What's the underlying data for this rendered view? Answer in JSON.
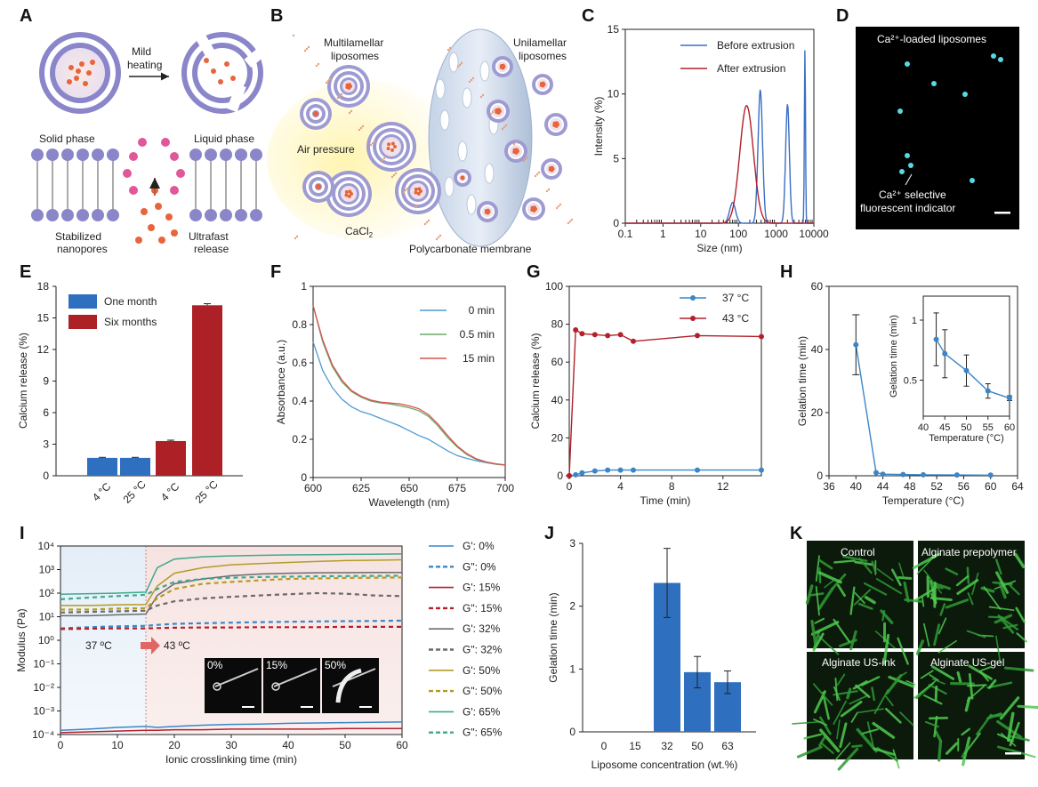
{
  "panels": {
    "A": {
      "label": "A",
      "mild": "Mild",
      "heating": "heating",
      "solid": "Solid phase",
      "liquid": "Liquid phase",
      "stab1": "Stabilized",
      "stab2": "nanopores",
      "ultra1": "Ultrafast",
      "ultra2": "release"
    },
    "B": {
      "label": "B",
      "multi1": "Multilamellar",
      "multi2": "liposomes",
      "uni1": "Unilamellar",
      "uni2": "liposomes",
      "air": "Air pressure",
      "cacl": "CaCl",
      "cacl_sub": "2",
      "membrane": "Polycarbonate membrane"
    },
    "C": {
      "label": "C"
    },
    "D": {
      "label": "D",
      "title": "Ca²⁺-loaded liposomes",
      "ind1": "Ca²⁺ selective",
      "ind2": "fluorescent indicator"
    },
    "E": {
      "label": "E"
    },
    "F": {
      "label": "F"
    },
    "G": {
      "label": "G"
    },
    "H": {
      "label": "H"
    },
    "I": {
      "label": "I",
      "temp_from": "37 ºC",
      "temp_to": "43 ºC",
      "insets": [
        "0%",
        "15%",
        "50%"
      ]
    },
    "J": {
      "label": "J"
    },
    "K": {
      "label": "K",
      "tiles": [
        "Control",
        "Alginate prepolymer",
        "Alginate US-ink",
        "Alginate US-gel"
      ]
    }
  },
  "colors": {
    "blue": "#3a6fc4",
    "red": "#b3202a",
    "green": "#6aa86a",
    "gray": "#6b6b6b",
    "gold": "#b59a27",
    "teal": "#3fa88c",
    "barblue": "#2f6fbf",
    "barred": "#ad2025"
  },
  "chart_data": [
    {
      "id": "C",
      "type": "line",
      "xlabel": "Size (nm)",
      "ylabel": "Intensity (%)",
      "xscale": "log",
      "xlim": [
        0.1,
        10000
      ],
      "ylim": [
        0,
        15
      ],
      "xticks": [
        "0.1",
        "1",
        "10",
        "100",
        "1000",
        "10000"
      ],
      "yticks": [
        "0",
        "5",
        "10",
        "15"
      ],
      "series": [
        {
          "name": "Before extrusion",
          "color": "#3a6fc4",
          "peaks": [
            [
              70,
              1.6,
              0.08
            ],
            [
              380,
              10.3,
              0.06
            ],
            [
              2000,
              9.2,
              0.05
            ],
            [
              5800,
              13.4,
              0.015
            ]
          ]
        },
        {
          "name": "After extrusion",
          "color": "#b3202a",
          "peaks": [
            [
              165,
              9.1,
              0.18
            ]
          ]
        }
      ]
    },
    {
      "id": "E",
      "type": "bar",
      "ylabel": "Calcium release (%)",
      "ylim": [
        0,
        18
      ],
      "yticks": [
        "0",
        "3",
        "6",
        "9",
        "12",
        "15",
        "18"
      ],
      "categories": [
        "4 °C",
        "25 °C",
        "4 °C",
        "25 °C"
      ],
      "values": [
        1.7,
        1.7,
        3.3,
        16.2
      ],
      "errors": [
        0.05,
        0.05,
        0.08,
        0.15
      ],
      "series_of_bar": [
        "One month",
        "One month",
        "Six months",
        "Six months"
      ],
      "legend": [
        "One month",
        "Six months"
      ]
    },
    {
      "id": "F",
      "type": "line",
      "xlabel": "Wavelength (nm)",
      "ylabel": "Absorbance (a.u.)",
      "xlim": [
        600,
        700
      ],
      "ylim": [
        0,
        1
      ],
      "xticks": [
        "600",
        "625",
        "650",
        "675",
        "700"
      ],
      "yticks": [
        "0",
        "0.2",
        "0.4",
        "0.6",
        "0.8",
        "1"
      ],
      "x": [
        600,
        605,
        610,
        615,
        620,
        625,
        630,
        635,
        640,
        645,
        650,
        655,
        660,
        665,
        670,
        675,
        680,
        685,
        690,
        695,
        700
      ],
      "series": [
        {
          "name": "0 min",
          "color": "#4f9bd4",
          "values": [
            0.71,
            0.56,
            0.47,
            0.41,
            0.37,
            0.345,
            0.33,
            0.31,
            0.29,
            0.27,
            0.245,
            0.22,
            0.2,
            0.17,
            0.14,
            0.115,
            0.1,
            0.088,
            0.078,
            0.07,
            0.065
          ]
        },
        {
          "name": "0.5 min",
          "color": "#6aa86a",
          "values": [
            0.9,
            0.71,
            0.58,
            0.5,
            0.45,
            0.42,
            0.4,
            0.39,
            0.385,
            0.375,
            0.365,
            0.35,
            0.32,
            0.27,
            0.21,
            0.16,
            0.12,
            0.095,
            0.08,
            0.07,
            0.065
          ]
        },
        {
          "name": "15 min",
          "color": "#d9534f",
          "values": [
            0.9,
            0.72,
            0.59,
            0.51,
            0.455,
            0.425,
            0.405,
            0.395,
            0.39,
            0.385,
            0.375,
            0.36,
            0.33,
            0.28,
            0.22,
            0.165,
            0.125,
            0.098,
            0.082,
            0.072,
            0.066
          ]
        }
      ]
    },
    {
      "id": "G",
      "type": "line",
      "xlabel": "Time (min)",
      "ylabel": "Calcium release (%)",
      "xlim": [
        0,
        15
      ],
      "ylim": [
        0,
        100
      ],
      "xticks": [
        "0",
        "4",
        "8",
        "12"
      ],
      "yticks": [
        "0",
        "20",
        "40",
        "60",
        "80",
        "100"
      ],
      "series": [
        {
          "name": "37 °C",
          "color": "#3a86c8",
          "x": [
            0,
            0.5,
            1,
            2,
            3,
            4,
            5,
            10,
            15
          ],
          "values": [
            0,
            0.5,
            1.5,
            2.5,
            3,
            3,
            3,
            3,
            3
          ]
        },
        {
          "name": "43 °C",
          "color": "#b3202a",
          "x": [
            0,
            0.5,
            1,
            2,
            3,
            4,
            5,
            10,
            15
          ],
          "values": [
            0,
            77,
            75,
            74.5,
            74,
            74.5,
            71,
            74,
            73.5
          ]
        }
      ]
    },
    {
      "id": "H",
      "type": "line",
      "xlabel": "Temperature (°C)",
      "ylabel": "Gelation time (min)",
      "xlim": [
        36,
        64
      ],
      "ylim": [
        0,
        60
      ],
      "xticks": [
        "36",
        "40",
        "44",
        "48",
        "52",
        "56",
        "60",
        "64"
      ],
      "yticks": [
        "0",
        "20",
        "40",
        "60"
      ],
      "x": [
        40,
        43,
        44,
        47,
        50,
        55,
        60
      ],
      "values": [
        41.5,
        1,
        0.5,
        0.4,
        0.3,
        0.25,
        0.2
      ],
      "errors": [
        9.5,
        0,
        0,
        0,
        0,
        0,
        0
      ],
      "inset": {
        "xlabel": "Temperature (°C)",
        "ylabel": "Gelation time (min)",
        "xlim": [
          40,
          60
        ],
        "ylim": [
          0.2,
          1.2
        ],
        "xticks": [
          "40",
          "45",
          "50",
          "55",
          "60"
        ],
        "yticks": [
          "0.5",
          "1"
        ],
        "x": [
          43,
          45,
          50,
          55,
          60
        ],
        "values": [
          0.84,
          0.72,
          0.58,
          0.41,
          0.35
        ],
        "errors": [
          0.22,
          0.2,
          0.13,
          0.06,
          0.02
        ]
      }
    },
    {
      "id": "I",
      "type": "line",
      "xlabel": "Ionic crosslinking time (min)",
      "ylabel": "Modulus (Pa)",
      "xlim": [
        0,
        60
      ],
      "yscale": "log",
      "ylim": [
        0.0001,
        10000
      ],
      "xticks": [
        "0",
        "10",
        "20",
        "30",
        "40",
        "50",
        "60"
      ],
      "yticks": [
        "10⁴",
        "10³",
        "10²",
        "10¹",
        "10⁰",
        "10⁻¹",
        "10⁻²",
        "10⁻³",
        "10⁻⁴"
      ],
      "x": [
        0,
        5,
        10,
        15,
        17,
        20,
        25,
        30,
        35,
        40,
        45,
        50,
        55,
        60
      ],
      "series": [
        {
          "name": "G': 0%",
          "color": "#3a86c8",
          "dash": false,
          "values": [
            0.00015,
            0.00017,
            0.0002,
            0.00022,
            0.0002,
            0.00022,
            0.00025,
            0.00027,
            0.00028,
            0.0003,
            0.00031,
            0.00032,
            0.00033,
            0.00034
          ]
        },
        {
          "name": "G\": 0%",
          "color": "#3a86c8",
          "dash": true,
          "values": [
            3.2,
            3.6,
            3.9,
            4.1,
            4.5,
            5.0,
            5.3,
            5.6,
            5.9,
            6.1,
            6.3,
            6.5,
            6.6,
            6.8
          ]
        },
        {
          "name": "G': 15%",
          "color": "#b3202a",
          "dash": false,
          "values": [
            0.00012,
            0.00013,
            0.00014,
            0.00015,
            0.00015,
            0.00016,
            0.00016,
            0.00017,
            0.00017,
            0.00017,
            0.00017,
            0.00018,
            0.00018,
            0.00018
          ]
        },
        {
          "name": "G\": 15%",
          "color": "#b3202a",
          "dash": true,
          "values": [
            3.0,
            3.1,
            3.2,
            3.2,
            3.3,
            3.4,
            3.5,
            3.5,
            3.6,
            3.6,
            3.6,
            3.7,
            3.7,
            3.7
          ]
        },
        {
          "name": "G': 32%",
          "color": "#6b6b6b",
          "dash": false,
          "values": [
            11,
            11,
            12,
            13,
            80,
            250,
            400,
            550,
            650,
            700,
            730,
            740,
            750,
            760
          ]
        },
        {
          "name": "G\": 32%",
          "color": "#6b6b6b",
          "dash": true,
          "values": [
            15,
            16,
            17,
            18,
            30,
            45,
            60,
            70,
            80,
            90,
            100,
            95,
            80,
            75
          ]
        },
        {
          "name": "G': 50%",
          "color": "#b59a27",
          "dash": false,
          "values": [
            30,
            30,
            32,
            33,
            200,
            700,
            1200,
            1600,
            1800,
            2000,
            2200,
            2400,
            2500,
            2600
          ]
        },
        {
          "name": "G\": 50%",
          "color": "#b59a27",
          "dash": true,
          "values": [
            20,
            20,
            22,
            23,
            60,
            150,
            250,
            300,
            350,
            400,
            420,
            440,
            450,
            460
          ]
        },
        {
          "name": "G': 65%",
          "color": "#3fa88c",
          "dash": false,
          "values": [
            90,
            95,
            100,
            110,
            1200,
            2800,
            3500,
            3800,
            4000,
            4200,
            4300,
            4400,
            4500,
            4600
          ]
        },
        {
          "name": "G\": 65%",
          "color": "#3fa88c",
          "dash": true,
          "values": [
            55,
            65,
            75,
            85,
            150,
            300,
            400,
            450,
            480,
            500,
            520,
            530,
            540,
            550
          ]
        }
      ]
    },
    {
      "id": "J",
      "type": "bar",
      "xlabel": "Liposome concentration (wt.%)",
      "ylabel": "Gelation time (min)",
      "ylim": [
        0,
        3
      ],
      "yticks": [
        "0",
        "1",
        "2",
        "3"
      ],
      "categories": [
        "0",
        "15",
        "32",
        "50",
        "63"
      ],
      "values": [
        0,
        0,
        2.37,
        0.95,
        0.79
      ],
      "errors": [
        0,
        0,
        0.55,
        0.25,
        0.18
      ]
    }
  ]
}
